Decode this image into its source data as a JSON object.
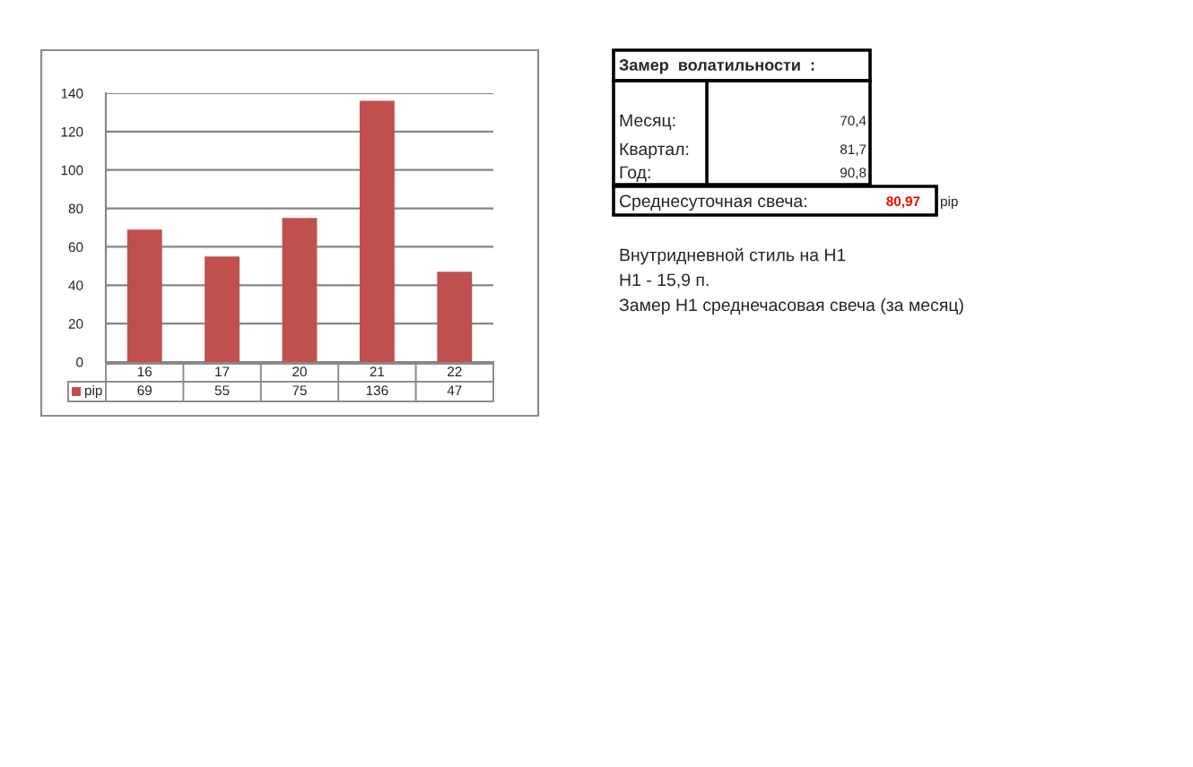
{
  "chart_data": {
    "type": "bar",
    "categories": [
      "16",
      "17",
      "20",
      "21",
      "22"
    ],
    "series": [
      {
        "name": "pip",
        "color": "#c0504d",
        "values": [
          69,
          55,
          75,
          136,
          47
        ]
      }
    ],
    "ylim": [
      0,
      140
    ],
    "yticks": [
      0,
      20,
      40,
      60,
      80,
      100,
      120,
      140
    ],
    "grid": "y",
    "data_labels": true,
    "annotations": [
      "Замер  волатильности  :",
      "Месяц:",
      "70,4",
      "Квартал:",
      "81,7",
      "Год:",
      "90,8",
      "Среднесуточная свеча:",
      "80,97",
      "pip",
      "Внутридневной стиль на H1",
      "H1 - 15,9 п.",
      "Замер H1 среднечасовая свеча (за месяц)"
    ]
  }
}
